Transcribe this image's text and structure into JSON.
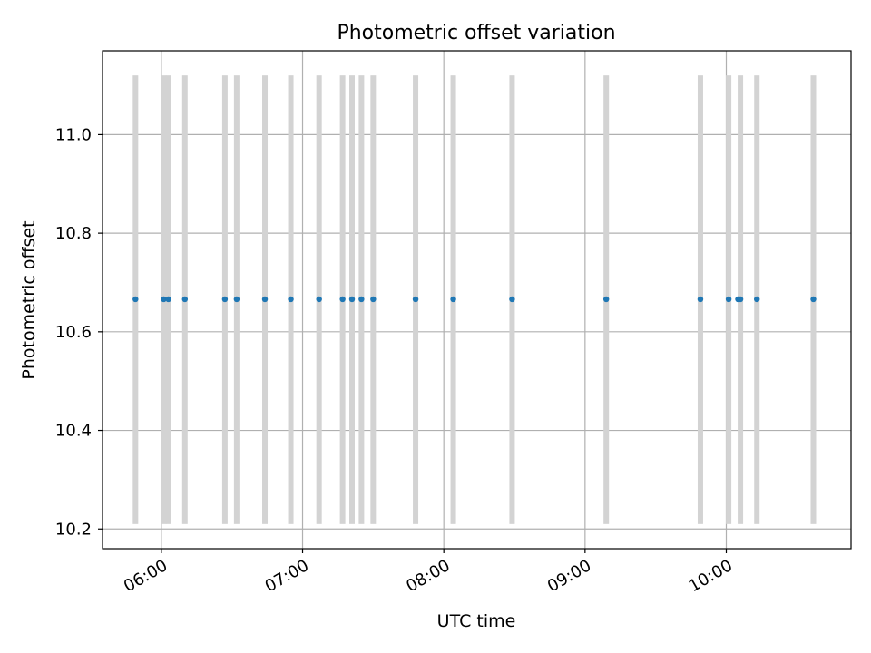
{
  "chart_data": {
    "type": "scatter",
    "title": "Photometric offset variation",
    "xlabel": "UTC time",
    "ylabel": "Photometric offset",
    "x_axis_type": "time",
    "xlim": [
      "05:35",
      "10:53"
    ],
    "ylim": [
      10.16,
      11.17
    ],
    "xticks": [
      "06:00",
      "07:00",
      "08:00",
      "09:00",
      "10:00"
    ],
    "yticks": [
      10.2,
      10.4,
      10.6,
      10.8,
      11.0
    ],
    "ytick_labels": [
      "10.2",
      "10.4",
      "10.6",
      "10.8",
      "11.0"
    ],
    "grid": true,
    "legend": "none",
    "point_color": "#1f77b4",
    "band_color": "#d3d3d3",
    "band_range": [
      10.21,
      11.12
    ],
    "series": [
      {
        "x": [
          "05:49",
          "06:01",
          "06:03",
          "06:10",
          "06:27",
          "06:32",
          "06:44",
          "06:55",
          "07:07",
          "07:17",
          "07:21",
          "07:25",
          "07:30",
          "07:48",
          "08:04",
          "08:29",
          "09:09",
          "09:49",
          "10:01",
          "10:05",
          "10:06",
          "10:13",
          "10:37"
        ],
        "y": [
          10.666,
          10.666,
          10.666,
          10.666,
          10.666,
          10.666,
          10.666,
          10.666,
          10.666,
          10.666,
          10.666,
          10.666,
          10.666,
          10.666,
          10.666,
          10.666,
          10.666,
          10.666,
          10.666,
          10.666,
          10.666,
          10.666,
          10.666
        ]
      }
    ],
    "bands_x": [
      "05:49",
      "06:01",
      "06:03",
      "06:10",
      "06:27",
      "06:32",
      "06:44",
      "06:55",
      "07:07",
      "07:17",
      "07:21",
      "07:25",
      "07:30",
      "07:48",
      "08:04",
      "08:29",
      "09:09",
      "09:49",
      "10:01",
      "10:06",
      "10:13",
      "10:37"
    ]
  }
}
